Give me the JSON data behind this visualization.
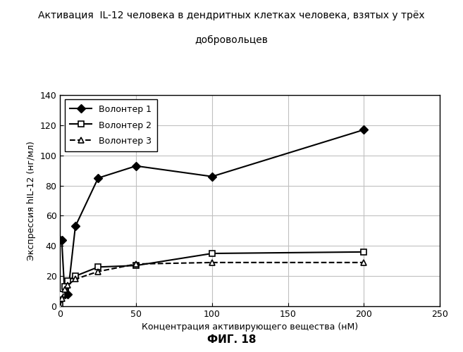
{
  "title_line1": "Активация  IL-12 человека в дендритных клетках человека, взятых у трёх",
  "title_line2": "добровольцев",
  "xlabel": "Концентрация активирующего вещества (нМ)",
  "ylabel": "Экспрессия hIL-12 (нг/мл)",
  "caption": "ФИГ. 18",
  "volunteer1": {
    "label": "Волонтер 1",
    "x": [
      0,
      1,
      3,
      5,
      10,
      25,
      50,
      100,
      200
    ],
    "y": [
      44,
      44,
      8,
      8,
      53,
      85,
      93,
      86,
      117
    ]
  },
  "volunteer2": {
    "label": "Волонтер 2",
    "x": [
      0,
      1,
      3,
      5,
      10,
      25,
      50,
      100,
      200
    ],
    "y": [
      1,
      8,
      13,
      17,
      20,
      26,
      27,
      35,
      36
    ]
  },
  "volunteer3": {
    "label": "Волонтер 3",
    "x": [
      0,
      1,
      3,
      5,
      10,
      25,
      50,
      100,
      200
    ],
    "y": [
      0,
      5,
      11,
      14,
      18,
      23,
      28,
      29,
      29
    ]
  },
  "xlim": [
    0,
    250
  ],
  "ylim": [
    0,
    140
  ],
  "xticks": [
    0,
    50,
    100,
    150,
    200,
    250
  ],
  "yticks": [
    0,
    20,
    40,
    60,
    80,
    100,
    120,
    140
  ],
  "background_color": "#ffffff",
  "line_color": "#000000",
  "grid_color": "#c0c0c0"
}
